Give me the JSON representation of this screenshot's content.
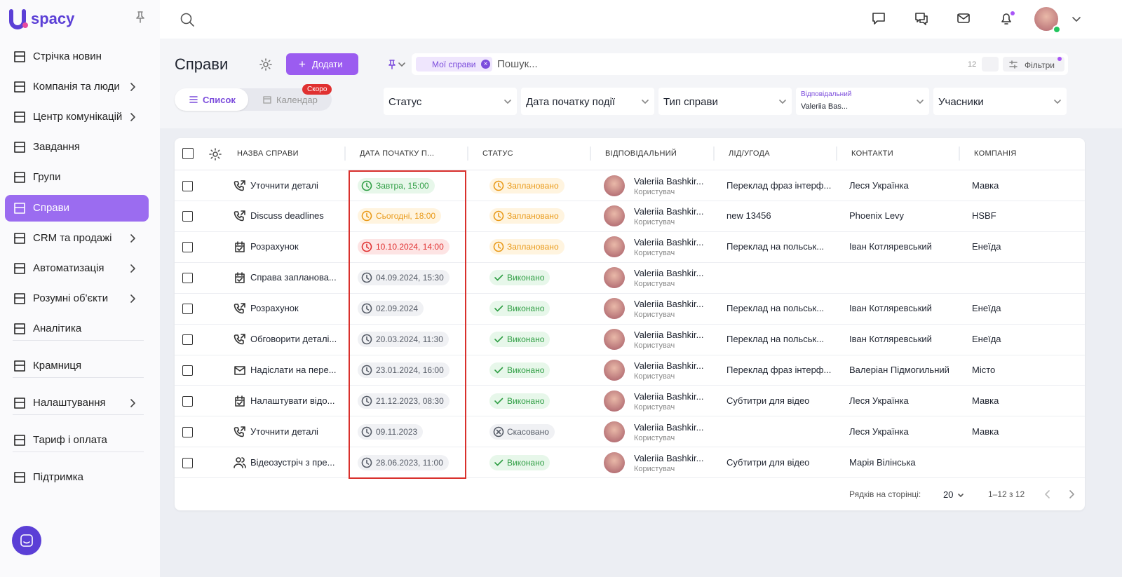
{
  "logo": "spacy",
  "sidebar": {
    "groups": [
      [
        {
          "label": "Стрічка новин",
          "submenu": false,
          "active": false
        },
        {
          "label": "Компанія та люди",
          "submenu": true,
          "active": false
        },
        {
          "label": "Центр комунікацій",
          "submenu": true,
          "active": false
        },
        {
          "label": "Завдання",
          "submenu": false,
          "active": false
        },
        {
          "label": "Групи",
          "submenu": false,
          "active": false
        },
        {
          "label": "Справи",
          "submenu": false,
          "active": true
        },
        {
          "label": "CRM та продажі",
          "submenu": true,
          "active": false
        },
        {
          "label": "Автоматизація",
          "submenu": true,
          "active": false
        },
        {
          "label": "Розумні об'єкти",
          "submenu": true,
          "active": false
        },
        {
          "label": "Аналітика",
          "submenu": false,
          "active": false
        }
      ],
      [
        {
          "label": "Крамниця",
          "submenu": false,
          "active": false
        }
      ],
      [
        {
          "label": "Налаштування",
          "submenu": true,
          "active": false
        }
      ],
      [
        {
          "label": "Тариф і оплата",
          "submenu": false,
          "active": false
        }
      ],
      [
        {
          "label": "Підтримка",
          "submenu": false,
          "active": false
        }
      ]
    ]
  },
  "header": {
    "title": "Справи",
    "add_button": "Додати",
    "tabs": [
      {
        "label": "Список",
        "active": true
      },
      {
        "label": "Календар",
        "active": false,
        "badge": "Скоро"
      }
    ],
    "search": {
      "chip": "Мої справи",
      "placeholder": "Пошук...",
      "count": "12",
      "filters": "Фільтри"
    },
    "dropdowns": [
      {
        "text": "Статус"
      },
      {
        "text": "Дата початку події"
      },
      {
        "text": "Тип справи"
      },
      {
        "label": "Відповідальний",
        "text": "Valeriia Bas..."
      },
      {
        "text": "Учасники"
      }
    ]
  },
  "table": {
    "columns": [
      "НАЗВА СПРАВИ",
      "ДАТА ПОЧАТКУ П...",
      "СТАТУС",
      "ВІДПОВІДАЛЬНИЙ",
      "ЛІД/УГОДА",
      "КОНТАКТИ",
      "КОМПАНІЯ"
    ],
    "rows": [
      {
        "icon": "call",
        "name": "Уточнити деталі",
        "date": "Завтра, 15:00",
        "date_tone": "green",
        "status": "Заплановано",
        "status_tone": "orange",
        "responsible": "Valeriia Bashkir...",
        "role": "Користувач",
        "deal": "Переклад фраз інтерф...",
        "contact": "Леся Українка",
        "company": "Мавка"
      },
      {
        "icon": "call",
        "name": "Discuss deadlines",
        "date": "Сьогодні, 18:00",
        "date_tone": "orange",
        "status": "Заплановано",
        "status_tone": "orange",
        "responsible": "Valeriia Bashkir...",
        "role": "Користувач",
        "deal": "new 13456",
        "contact": "Phoenix Levy",
        "company": "HSBF"
      },
      {
        "icon": "task",
        "name": "Розрахунок",
        "date": "10.10.2024, 14:00",
        "date_tone": "red",
        "status": "Заплановано",
        "status_tone": "orange",
        "responsible": "Valeriia Bashkir...",
        "role": "Користувач",
        "deal": "Переклад на польськ...",
        "contact": "Іван Котляревський",
        "company": "Енеїда"
      },
      {
        "icon": "task",
        "name": "Справа запланова...",
        "date": "04.09.2024, 15:30",
        "date_tone": "gray",
        "status": "Виконано",
        "status_tone": "green",
        "responsible": "Valeriia Bashkir...",
        "role": "Користувач",
        "deal": null,
        "contact": null,
        "company": null
      },
      {
        "icon": "call",
        "name": "Розрахунок",
        "date": "02.09.2024",
        "date_tone": "gray",
        "status": "Виконано",
        "status_tone": "green",
        "responsible": "Valeriia Bashkir...",
        "role": "Користувач",
        "deal": "Переклад на польськ...",
        "contact": "Іван Котляревський",
        "company": "Енеїда"
      },
      {
        "icon": "call",
        "name": "Обговорити деталі...",
        "date": "20.03.2024, 11:30",
        "date_tone": "gray",
        "status": "Виконано",
        "status_tone": "green",
        "responsible": "Valeriia Bashkir...",
        "role": "Користувач",
        "deal": "Переклад на польськ...",
        "contact": "Іван Котляревський",
        "company": "Енеїда"
      },
      {
        "icon": "email",
        "name": "Надіслати на пере...",
        "date": "23.01.2024, 16:00",
        "date_tone": "gray",
        "status": "Виконано",
        "status_tone": "green",
        "responsible": "Valeriia Bashkir...",
        "role": "Користувач",
        "deal": "Переклад фраз інтерф...",
        "contact": "Валеріан Підмогильний",
        "company": "Місто"
      },
      {
        "icon": "task",
        "name": "Налаштувати відо...",
        "date": "21.12.2023, 08:30",
        "date_tone": "gray",
        "status": "Виконано",
        "status_tone": "green",
        "responsible": "Valeriia Bashkir...",
        "role": "Користувач",
        "deal": "Субтитри для відео",
        "contact": "Леся Українка",
        "company": "Мавка"
      },
      {
        "icon": "call",
        "name": "Уточнити деталі",
        "date": "09.11.2023",
        "date_tone": "gray",
        "status": "Скасовано",
        "status_tone": "gray",
        "responsible": "Valeriia Bashkir...",
        "role": "Користувач",
        "deal": null,
        "contact": "Леся Українка",
        "company": "Мавка"
      },
      {
        "icon": "meeting",
        "name": "Відеозустріч з пре...",
        "date": "28.06.2023, 11:00",
        "date_tone": "gray",
        "status": "Виконано",
        "status_tone": "green",
        "responsible": "Valeriia Bashkir...",
        "role": "Користувач",
        "deal": "Субтитри для відео",
        "contact": "Марія Вілінська",
        "company": null
      }
    ],
    "footer": {
      "rows_label": "Рядків на сторінці:",
      "rows_value": "20",
      "range": "1–12 з 12"
    }
  }
}
